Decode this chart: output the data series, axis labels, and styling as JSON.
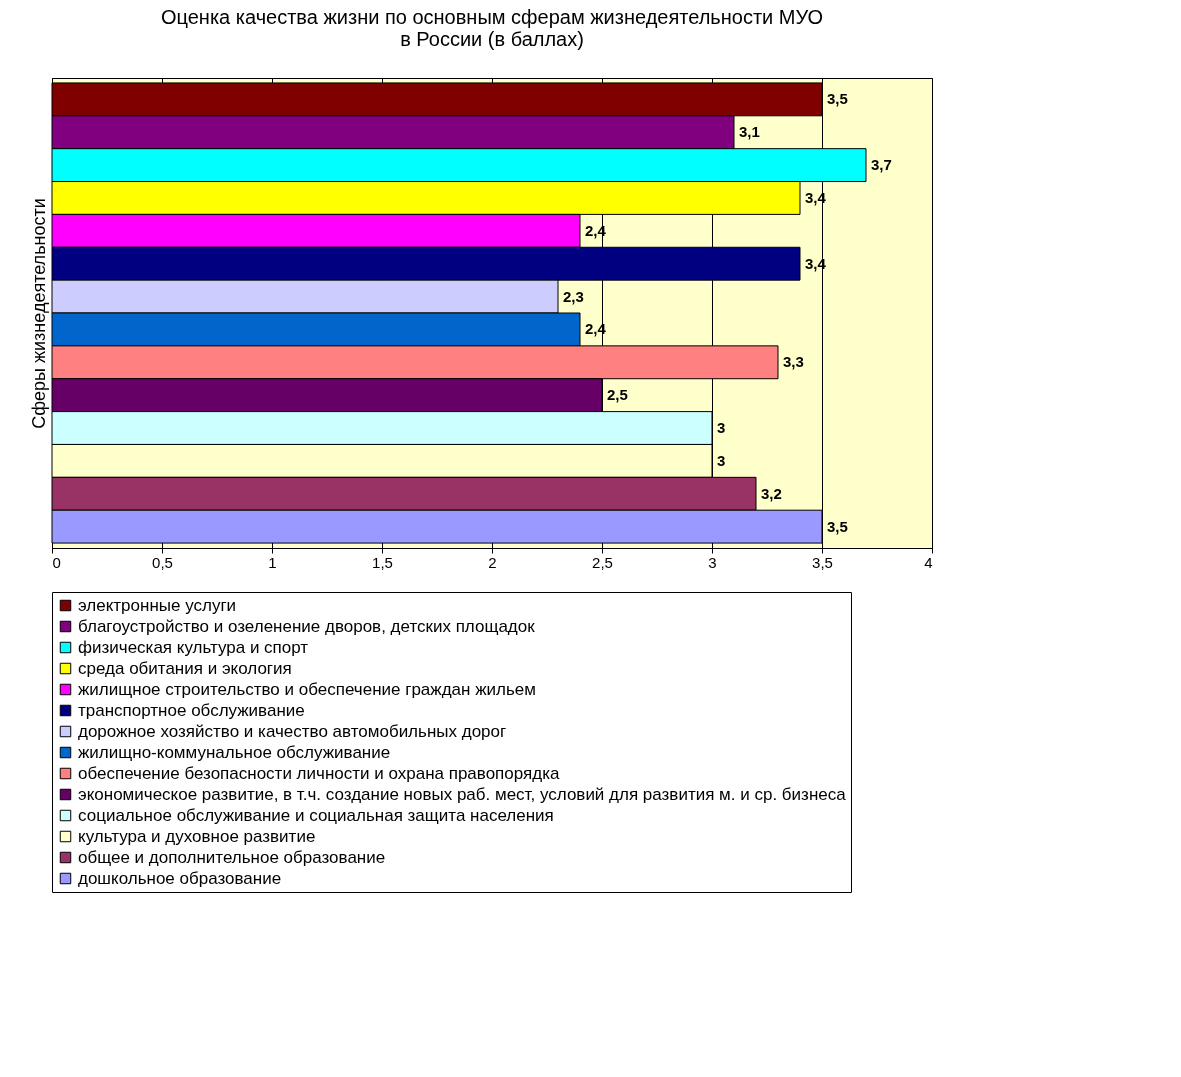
{
  "chart_data": {
    "type": "bar",
    "orientation": "horizontal",
    "title": "Оценка качества жизни по основным сферам жизнедеятельности МУО\nв России (в баллах)",
    "ylabel": "Сферы жизнедеятельности",
    "categories": [
      null
    ],
    "xlim": [
      0,
      4
    ],
    "xticks": [
      0,
      {
        "value": 0.5,
        "label": "0,5"
      },
      1,
      {
        "value": 1.5,
        "label": "1,5"
      },
      2,
      {
        "value": 2.5,
        "label": "2,5"
      },
      3,
      {
        "value": 3.5,
        "label": "3,5"
      },
      4
    ],
    "grid": "x",
    "legend": "bottom",
    "series": [
      {
        "name": "электронные услуги",
        "color": "#800000",
        "values": [
          3.5
        ],
        "value_labels": [
          "3,5"
        ]
      },
      {
        "name": "благоустройство и озеленение дворов, детских площадок",
        "color": "#800080",
        "values": [
          3.1
        ],
        "value_labels": [
          "3,1"
        ]
      },
      {
        "name": "физическая культура и спорт",
        "color": "#00ffff",
        "values": [
          3.7
        ],
        "value_labels": [
          "3,7"
        ]
      },
      {
        "name": "среда обитания и экология",
        "color": "#ffff00",
        "values": [
          3.4
        ],
        "value_labels": [
          "3,4"
        ]
      },
      {
        "name": "жилищное строительство и обеспечение граждан жильем",
        "color": "#ff00ff",
        "values": [
          2.4
        ],
        "value_labels": [
          "2,4"
        ]
      },
      {
        "name": "транспортное обслуживание",
        "color": "#000080",
        "values": [
          3.4
        ],
        "value_labels": [
          "3,4"
        ]
      },
      {
        "name": "дорожное хозяйство и качество автомобильных дорог",
        "color": "#ccccff",
        "values": [
          2.3
        ],
        "value_labels": [
          "2,3"
        ]
      },
      {
        "name": "жилищно-коммунальное обслуживание",
        "color": "#0066cc",
        "values": [
          2.4
        ],
        "value_labels": [
          "2,4"
        ]
      },
      {
        "name": "обеспечение безопасности личности и охрана правопорядка",
        "color": "#ff8080",
        "values": [
          3.3
        ],
        "value_labels": [
          "3,3"
        ]
      },
      {
        "name": "экономическое развитие, в т.ч. создание новых раб. мест, условий для развития м. и ср. бизнеса",
        "color": "#660066",
        "values": [
          2.5
        ],
        "value_labels": [
          "2,5"
        ]
      },
      {
        "name": "социальное обслуживание и социальная защита населения",
        "color": "#ccffff",
        "values": [
          3
        ],
        "value_labels": [
          "3"
        ]
      },
      {
        "name": "культура и духовное развитие",
        "color": "#ffffcc",
        "values": [
          3
        ],
        "value_labels": [
          "3"
        ]
      },
      {
        "name": "общее и дополнительное образование",
        "color": "#993366",
        "values": [
          3.2
        ],
        "value_labels": [
          "3,2"
        ]
      },
      {
        "name": "дошкольное образование",
        "color": "#9999ff",
        "values": [
          3.5
        ],
        "value_labels": [
          "3,5"
        ]
      }
    ]
  }
}
